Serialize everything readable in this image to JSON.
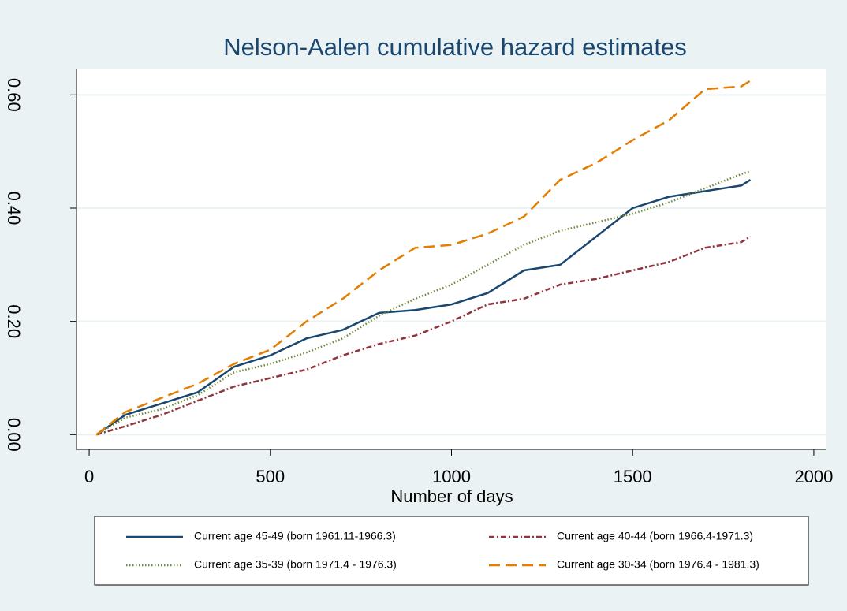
{
  "chart_data": {
    "type": "line",
    "title": "Nelson-Aalen cumulative hazard estimates",
    "x_label": "Number of days",
    "x": [
      20,
      100,
      200,
      300,
      400,
      500,
      600,
      700,
      800,
      900,
      1000,
      1100,
      1200,
      1300,
      1400,
      1500,
      1600,
      1700,
      1800,
      1825
    ],
    "series": [
      {
        "name": "Current age 45-49 (born 1961.11-1966.3)",
        "color": "#1a476f",
        "dash": "solid",
        "values": [
          0,
          0.035,
          0.055,
          0.075,
          0.12,
          0.14,
          0.17,
          0.185,
          0.215,
          0.22,
          0.23,
          0.25,
          0.29,
          0.3,
          0.35,
          0.4,
          0.42,
          0.43,
          0.44,
          0.45
        ]
      },
      {
        "name": "Current age 40-44 (born 1966.4-1971.3)",
        "color": "#90353b",
        "dash": "dashdot",
        "values": [
          0,
          0.015,
          0.035,
          0.06,
          0.085,
          0.1,
          0.115,
          0.14,
          0.16,
          0.175,
          0.2,
          0.23,
          0.24,
          0.265,
          0.275,
          0.29,
          0.305,
          0.33,
          0.34,
          0.35
        ]
      },
      {
        "name": "Current age 35-39 (born 1971.4 - 1976.3)",
        "color": "#6e8b3d",
        "dash": "dot",
        "values": [
          0,
          0.03,
          0.045,
          0.07,
          0.11,
          0.125,
          0.145,
          0.17,
          0.21,
          0.24,
          0.265,
          0.3,
          0.335,
          0.36,
          0.375,
          0.39,
          0.41,
          0.435,
          0.46,
          0.465
        ]
      },
      {
        "name": "Current age 30-34 (born 1976.4 - 1981.3)",
        "color": "#e37e00",
        "dash": "dash",
        "values": [
          0,
          0.04,
          0.065,
          0.09,
          0.125,
          0.15,
          0.2,
          0.24,
          0.29,
          0.33,
          0.335,
          0.355,
          0.385,
          0.45,
          0.48,
          0.52,
          0.555,
          0.61,
          0.615,
          0.625
        ]
      }
    ],
    "xlim": [
      -35,
      2035
    ],
    "xticks": [
      0,
      500,
      1000,
      1500,
      2000
    ],
    "ylim": [
      -0.026,
      0.645
    ],
    "yticks": [
      {
        "value": 0,
        "label": "0.00"
      },
      {
        "value": 0.2,
        "label": "0.20"
      },
      {
        "value": 0.4,
        "label": "0.40"
      },
      {
        "value": 0.6,
        "label": "0.60"
      }
    ],
    "grid": true
  }
}
